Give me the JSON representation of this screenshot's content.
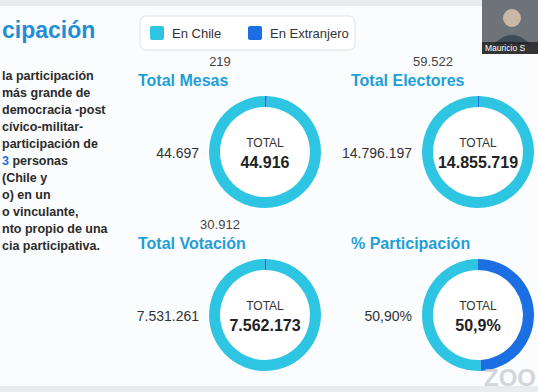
{
  "header": {
    "title": "cipación"
  },
  "paragraph": {
    "accent_color": "#1b6fe3",
    "lines": [
      [
        {
          "text": "la participación"
        }
      ],
      [
        {
          "text": "más grande de"
        }
      ],
      [
        {
          "text": "democracia -post"
        }
      ],
      [
        {
          "text": "cívico-militar-"
        }
      ],
      [
        {
          "text": "participación de"
        }
      ],
      [
        {
          "text": "3",
          "accent": true
        },
        {
          "text": " personas"
        }
      ],
      [
        {
          "text": "(Chile y"
        }
      ],
      [
        {
          "text": "o) en un"
        }
      ],
      [
        {
          "text": "o vinculante,"
        }
      ],
      [
        {
          "text": "nto propio de una"
        }
      ],
      [
        {
          "text": "cia participativa."
        }
      ]
    ]
  },
  "chart_data": [
    {
      "type": "pie",
      "title": "Total Mesas",
      "categories": [
        "En Chile",
        "En Extranjero"
      ],
      "values": [
        44697,
        219
      ],
      "value_labels": [
        "44.697",
        "219"
      ],
      "colors": [
        "#2ec5e3",
        "#1b6fe3"
      ],
      "data_labels": true,
      "center_label": "TOTAL",
      "total_label": "44.916"
    },
    {
      "type": "pie",
      "title": "Total Electores",
      "categories": [
        "En Chile",
        "En Extranjero"
      ],
      "values": [
        14796197,
        59522
      ],
      "value_labels": [
        "14.796.197",
        "59.522"
      ],
      "colors": [
        "#2ec5e3",
        "#1b6fe3"
      ],
      "data_labels": true,
      "center_label": "TOTAL",
      "total_label": "14.855.719"
    },
    {
      "type": "pie",
      "title": "Total Votación",
      "categories": [
        "En Chile",
        "En Extranjero"
      ],
      "values": [
        7531261,
        30912
      ],
      "value_labels": [
        "7.531.261",
        "30.912"
      ],
      "colors": [
        "#2ec5e3",
        "#1b6fe3"
      ],
      "data_labels": true,
      "center_label": "TOTAL",
      "total_label": "7.562.173"
    },
    {
      "type": "pie",
      "title": "% Participación",
      "categories": [
        "En Chile",
        "En Extranjero"
      ],
      "values": [
        50.9,
        49.1
      ],
      "value_labels": [
        "50,90%",
        null
      ],
      "colors": [
        "#2ec5e3",
        "#1b6fe3"
      ],
      "data_labels": true,
      "center_label": "TOTAL",
      "total_label": "50,9%"
    }
  ],
  "video_tile": {
    "name": "Mauricio S"
  },
  "watermark": "ZOO"
}
